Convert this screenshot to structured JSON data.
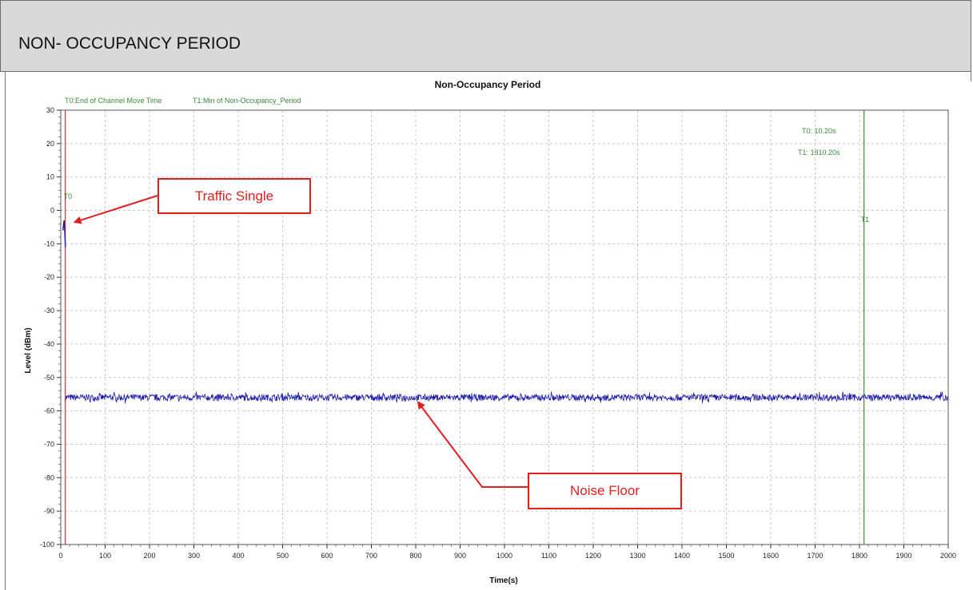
{
  "header": {
    "title": "NON- OCCUPANCY PERIOD"
  },
  "chart_data": {
    "type": "line",
    "title": "Non-Occupancy Period",
    "xlabel": "Time(s)",
    "ylabel": "Level (dBm)",
    "xlim": [
      0,
      2000
    ],
    "ylim": [
      -100,
      30
    ],
    "x_ticks": [
      "0",
      "100",
      "200",
      "300",
      "400",
      "500",
      "600",
      "700",
      "800",
      "900",
      "1000",
      "1100",
      "1200",
      "1300",
      "1400",
      "1500",
      "1600",
      "1700",
      "1800",
      "1900",
      "2000"
    ],
    "y_ticks": [
      "30",
      "20",
      "10",
      "0",
      "-10",
      "-20",
      "-30",
      "-40",
      "-50",
      "-60",
      "-70",
      "-80",
      "-90",
      "-100"
    ],
    "grid": true,
    "legend": [
      {
        "label": "T0:End of Channel Move Time",
        "color": "#3a8a3a"
      },
      {
        "label": "T1:Min of Non-Occupancy_Period",
        "color": "#3a8a3a"
      }
    ],
    "markers": [
      {
        "name": "T0",
        "x": 10.2,
        "label": "T0",
        "color": "#d03030"
      },
      {
        "name": "T1",
        "x": 1810.2,
        "label": "T1",
        "color": "#3a8a3a"
      }
    ],
    "annotations": {
      "t0": "T0: 10.20s",
      "t1": "T1: 1810.20s"
    },
    "series": [
      {
        "color": "#1a1aaa",
        "segments": [
          {
            "points": [
              [
                5.0,
                -6
              ],
              [
                6.5,
                -4
              ],
              [
                7.5,
                -3
              ],
              [
                8.5,
                -5
              ],
              [
                9.5,
                -8
              ],
              [
                10.2,
                -11
              ]
            ]
          },
          {
            "points": [
              [
                10.2,
                -56
              ],
              [
                2000,
                -56
              ]
            ],
            "noise_amplitude": 1
          }
        ]
      }
    ],
    "callouts": [
      {
        "text": "Traffic Single",
        "target": [
          10,
          -3.5
        ]
      },
      {
        "text": "Noise Floor",
        "target": [
          800,
          -56
        ]
      }
    ]
  }
}
